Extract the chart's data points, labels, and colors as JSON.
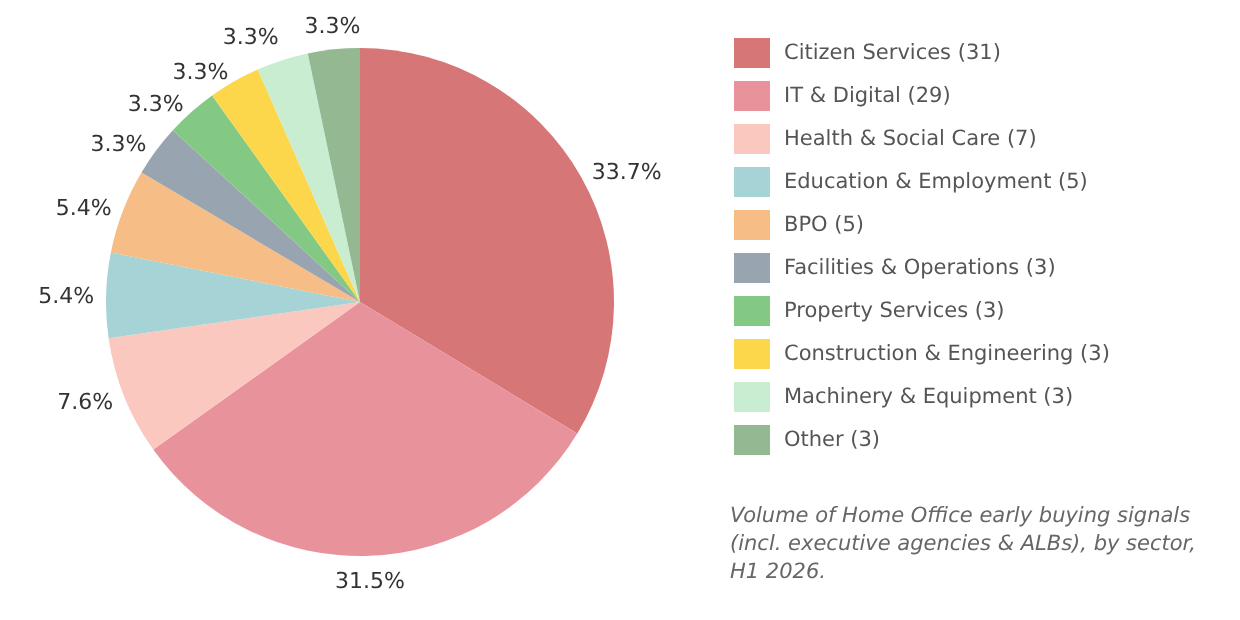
{
  "chart_data": {
    "type": "pie",
    "categories": [
      "Citizen Services (31)",
      "IT & Digital (29)",
      "Health & Social Care (7)",
      "Education & Employment (5)",
      "BPO (5)",
      "Facilities & Operations (3)",
      "Property Services (3)",
      "Construction & Engineering (3)",
      "Machinery & Equipment (3)",
      "Other (3)"
    ],
    "values": [
      33.7,
      31.5,
      7.6,
      5.4,
      5.4,
      3.3,
      3.3,
      3.3,
      3.3,
      3.3
    ],
    "value_labels": [
      "33.7%",
      "31.5%",
      "7.6%",
      "5.4%",
      "5.4%",
      "3.3%",
      "3.3%",
      "3.3%",
      "3.3%",
      "3.3%"
    ],
    "colors": [
      "#d67677",
      "#e8929c",
      "#fbc8bf",
      "#a5d3d6",
      "#f6bd86",
      "#98a5b0",
      "#84c983",
      "#fcd64b",
      "#c9edd1",
      "#93b892"
    ],
    "legend": "right",
    "annotations": [
      "Volume of Home Office early buying signals (incl. executive agencies & ALBs), by sector, H1 2026."
    ]
  }
}
